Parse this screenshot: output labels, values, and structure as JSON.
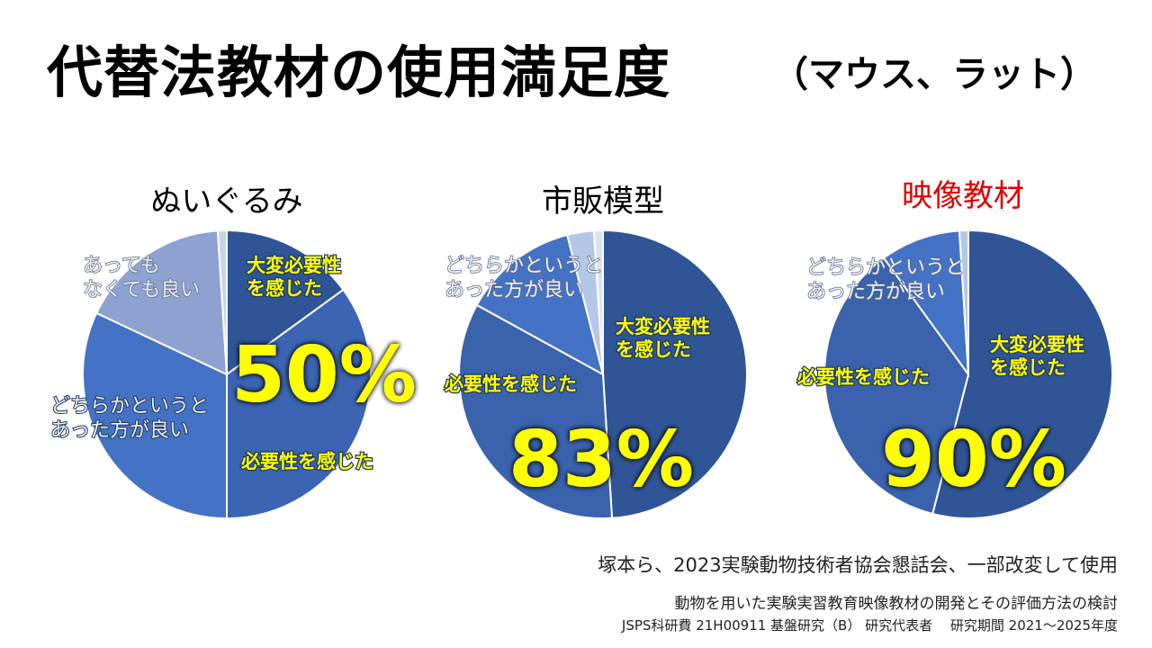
{
  "title": "代替法教材の使用満足度",
  "subtitle": "（マウス、ラット）",
  "chart_data": [
    {
      "type": "pie",
      "title": "ぬいぐるみ",
      "title_color": "#000000",
      "highlight": "50%",
      "slices": [
        {
          "label": "大変必要性を感じた",
          "value": 15
        },
        {
          "label": "必要性を感じた",
          "value": 35
        },
        {
          "label": "どちらかというとあった方が良い",
          "value": 32
        },
        {
          "label": "あってもなくても良い",
          "value": 17
        },
        {
          "label": "",
          "value": 1
        }
      ],
      "colors": [
        "#2f5597",
        "#3b64b2",
        "#4472c4",
        "#8ea2d2",
        "#c9d3ea"
      ]
    },
    {
      "type": "pie",
      "title": "市販模型",
      "title_color": "#000000",
      "highlight": "83%",
      "slices": [
        {
          "label": "大変必要性を感じた",
          "value": 49
        },
        {
          "label": "必要性を感じた",
          "value": 34
        },
        {
          "label": "どちらかというとあった方が良い",
          "value": 13
        },
        {
          "label": "",
          "value": 3
        },
        {
          "label": "",
          "value": 1
        }
      ],
      "colors": [
        "#2f5597",
        "#3a62ad",
        "#4472c4",
        "#b4c7e7",
        "#dae3f3"
      ]
    },
    {
      "type": "pie",
      "title": "映像教材",
      "title_color": "#e00000",
      "highlight": "90%",
      "slices": [
        {
          "label": "大変必要性を感じた",
          "value": 54
        },
        {
          "label": "必要性を感じた",
          "value": 36
        },
        {
          "label": "どちらかというとあった方が良い",
          "value": 9
        },
        {
          "label": "",
          "value": 1
        }
      ],
      "colors": [
        "#2f5597",
        "#3a62ad",
        "#4472c4",
        "#b4c7e7"
      ]
    }
  ],
  "label_lines": {
    "very_necessary": [
      "大変必要性",
      "を感じた"
    ],
    "necessary": "必要性を感じた",
    "rather_better": [
      "どちらかというと",
      "あった方が良い"
    ],
    "either": [
      "あっても",
      "なくても良い"
    ]
  },
  "notes": {
    "source": "塚本ら、2023実験動物技術者協会懇話会、一部改変して使用",
    "project": "動物を用いた実験実習教育映像教材の開発とその評価方法の検討",
    "grant": "JSPS科研費 21H00911  基盤研究（B） 研究代表者　 研究期間 2021～2025年度"
  }
}
